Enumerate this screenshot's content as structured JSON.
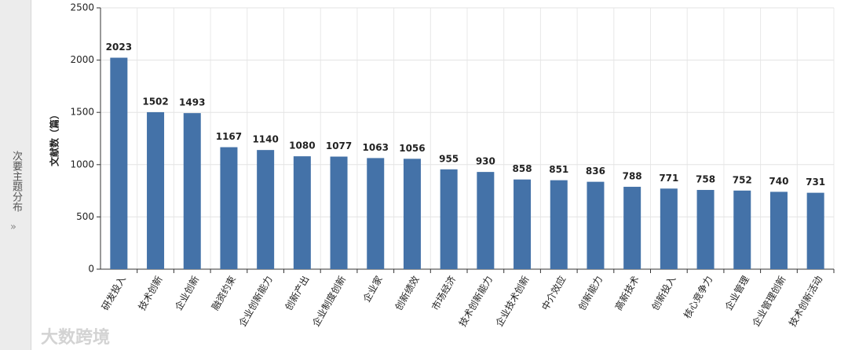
{
  "sidebar": {
    "label": "次要主题分布"
  },
  "watermark": "大数跨境",
  "chart_data": {
    "type": "bar",
    "ylabel": "文献数（篇）",
    "categories": [
      "研发投入",
      "技术创新",
      "企业创新",
      "融资约束",
      "企业创新能力",
      "创新产出",
      "企业制度创新",
      "企业家",
      "创新绩效",
      "市场经济",
      "技术创新能力",
      "企业技术创新",
      "中介效应",
      "创新能力",
      "高新技术",
      "创新投入",
      "核心竞争力",
      "企业管理",
      "企业管理创新",
      "技术创新活动"
    ],
    "values": [
      2023,
      1502,
      1493,
      1167,
      1140,
      1080,
      1077,
      1063,
      1056,
      955,
      930,
      858,
      851,
      836,
      788,
      771,
      758,
      752,
      740,
      731
    ],
    "color": "#4472a8",
    "ylim": [
      0,
      2500
    ],
    "yticks": [
      0,
      500,
      1000,
      1500,
      2000,
      2500
    ],
    "grid": true
  }
}
